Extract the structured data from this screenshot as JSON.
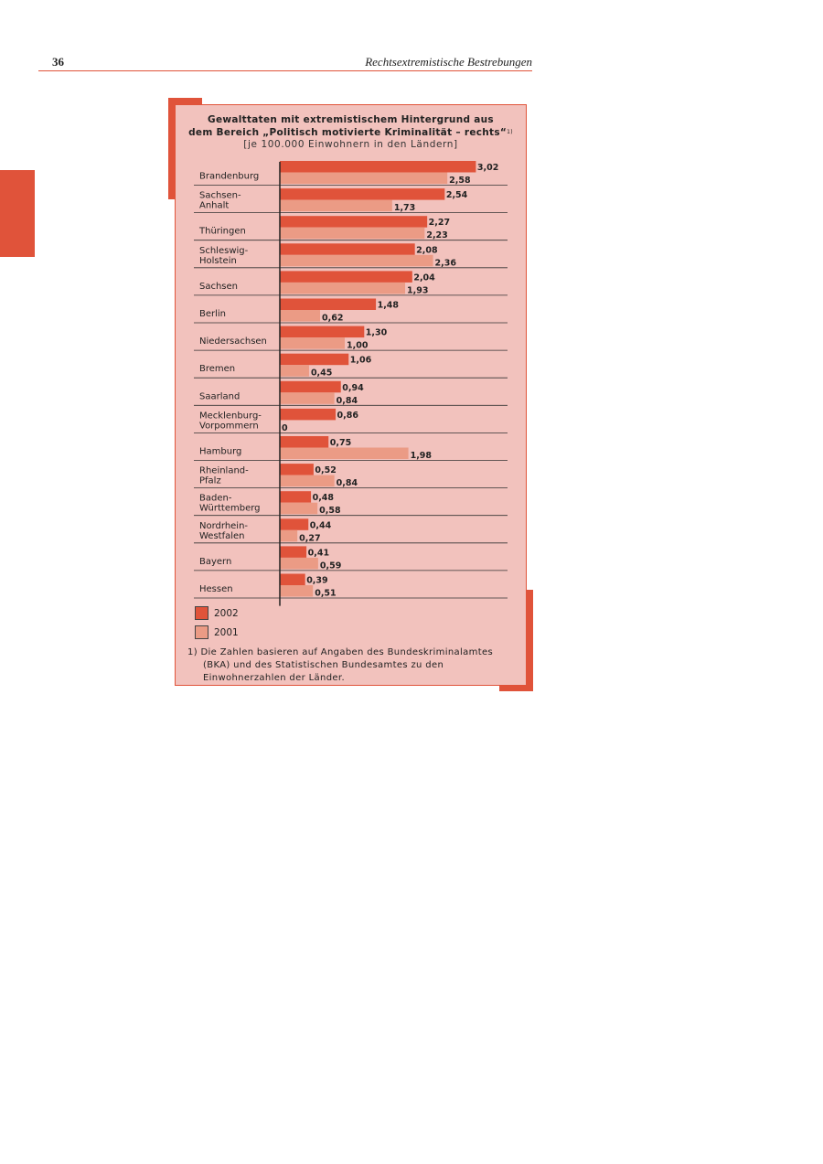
{
  "header": {
    "page_number": "36",
    "running_head": "Rechtsextremistische Bestrebungen"
  },
  "colors": {
    "accent": "#e0533a",
    "series_2002": "#e0533a",
    "series_2001": "#eb9b85",
    "panel_bg": "#f2c2bd"
  },
  "legend": {
    "item_2002": "2002",
    "item_2001": "2001"
  },
  "footnote": {
    "text": "1) Die Zahlen basieren auf Angaben des Bundeskriminalamtes (BKA) und des Statistischen Bundesamtes zu den Einwohnerzahlen der Länder."
  },
  "chart_data": {
    "type": "bar",
    "orientation": "horizontal",
    "title_line1": "Gewalttaten mit extremistischem Hintergrund aus",
    "title_line2": "dem Bereich „Politisch motivierte Kriminalität – rechts“",
    "title_footnote_mark": "1)",
    "subtitle": "[je 100.000 Einwohnern in den Ländern]",
    "xlim": [
      0,
      3.5
    ],
    "grid": false,
    "legend_position": "bottom-left",
    "categories": [
      [
        "Brandenburg"
      ],
      [
        "Sachsen-",
        "Anhalt"
      ],
      [
        "Thüringen"
      ],
      [
        "Schleswig-",
        "Holstein"
      ],
      [
        "Sachsen"
      ],
      [
        "Berlin"
      ],
      [
        "Niedersachsen"
      ],
      [
        "Bremen"
      ],
      [
        "Saarland"
      ],
      [
        "Mecklenburg-",
        "Vorpommern"
      ],
      [
        "Hamburg"
      ],
      [
        "Rheinland-",
        "Pfalz"
      ],
      [
        "Baden-",
        "Württemberg"
      ],
      [
        "Nordrhein-",
        "Westfalen"
      ],
      [
        "Bayern"
      ],
      [
        "Hessen"
      ]
    ],
    "series": [
      {
        "name": "2002",
        "values": [
          3.02,
          2.54,
          2.27,
          2.08,
          2.04,
          1.48,
          1.3,
          1.06,
          0.94,
          0.86,
          0.75,
          0.52,
          0.48,
          0.44,
          0.41,
          0.39
        ],
        "labels": [
          "3,02",
          "2,54",
          "2,27",
          "2,08",
          "2,04",
          "1,48",
          "1,30",
          "1,06",
          "0,94",
          "0,86",
          "0,75",
          "0,52",
          "0,48",
          "0,44",
          "0,41",
          "0,39"
        ]
      },
      {
        "name": "2001",
        "values": [
          2.58,
          1.73,
          2.23,
          2.36,
          1.93,
          0.62,
          1.0,
          0.45,
          0.84,
          0,
          1.98,
          0.84,
          0.58,
          0.27,
          0.59,
          0.51
        ],
        "labels": [
          "2,58",
          "1,73",
          "2,23",
          "2,36",
          "1,93",
          "0,62",
          "1,00",
          "0,45",
          "0,84",
          "0",
          "1,98",
          "0,84",
          "0,58",
          "0,27",
          "0,59",
          "0,51"
        ]
      }
    ]
  }
}
